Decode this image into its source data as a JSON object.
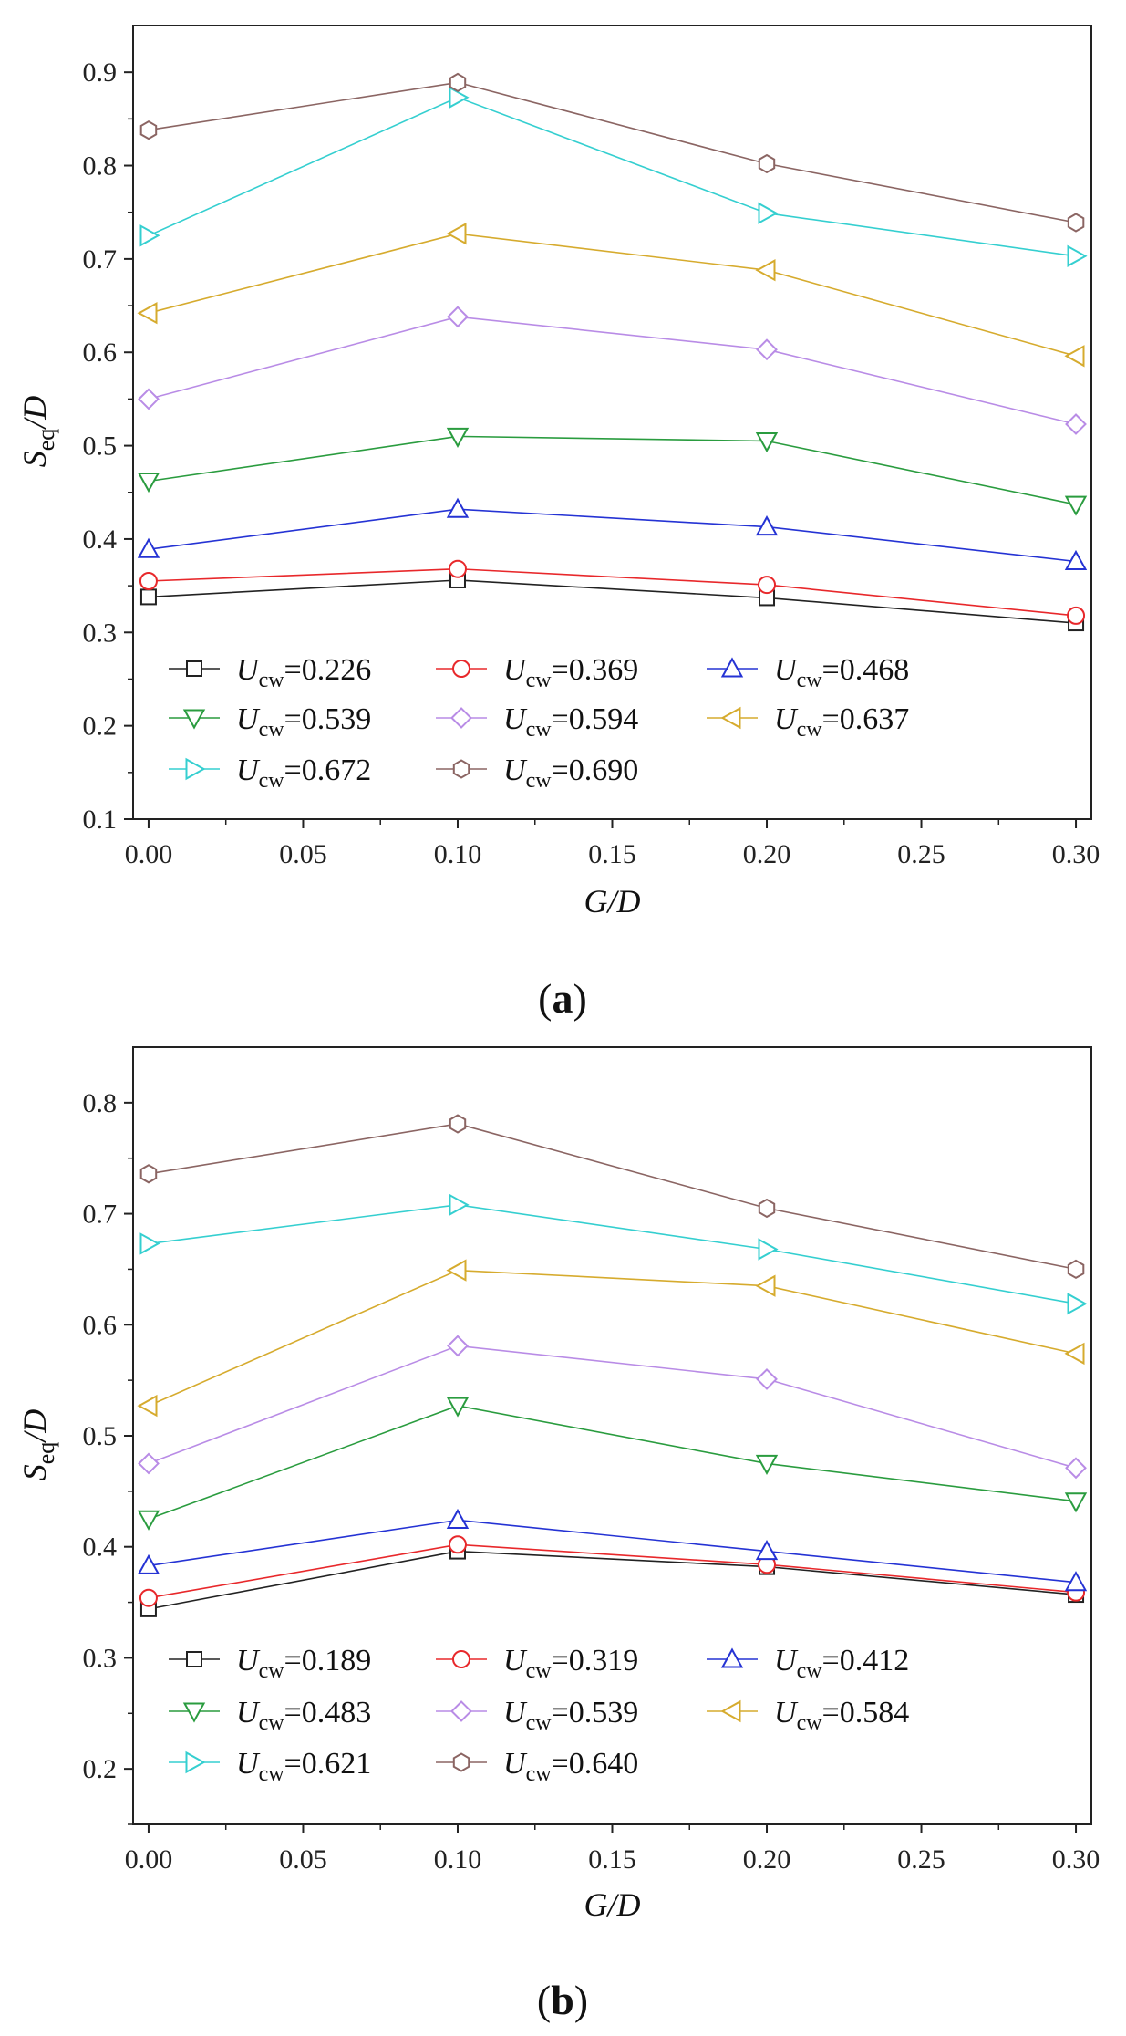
{
  "chart_data": [
    {
      "type": "line",
      "panel": "a",
      "panel_label": "a",
      "xlabel": "G/D",
      "ylabel": "Seq/D",
      "xlim": [
        -0.005,
        0.305
      ],
      "ylim": [
        0.1,
        0.95
      ],
      "x_ticks": [
        0.0,
        0.05,
        0.1,
        0.15,
        0.2,
        0.25,
        0.3
      ],
      "x_tick_labels": [
        "0.00",
        "0.05",
        "0.10",
        "0.15",
        "0.20",
        "0.25",
        "0.30"
      ],
      "y_ticks": [
        0.1,
        0.2,
        0.3,
        0.4,
        0.5,
        0.6,
        0.7,
        0.8,
        0.9
      ],
      "y_tick_labels": [
        "0.1",
        "0.2",
        "0.3",
        "0.4",
        "0.5",
        "0.6",
        "0.7",
        "0.8",
        "0.9"
      ],
      "legend_position": "bottom-left",
      "x": [
        0.0,
        0.1,
        0.2,
        0.3
      ],
      "series": [
        {
          "name": "Ucw=0.226",
          "label_value": "=0.226",
          "marker": "square",
          "color": "#222222",
          "values": [
            0.338,
            0.356,
            0.337,
            0.31
          ]
        },
        {
          "name": "Ucw=0.369",
          "label_value": "=0.369",
          "marker": "circle",
          "color": "#e8282b",
          "values": [
            0.355,
            0.368,
            0.351,
            0.318
          ]
        },
        {
          "name": "Ucw=0.468",
          "label_value": "=0.468",
          "marker": "triangle-up",
          "color": "#2533d4",
          "values": [
            0.389,
            0.432,
            0.413,
            0.376
          ]
        },
        {
          "name": "Ucw=0.539",
          "label_value": "=0.539",
          "marker": "triangle-down",
          "color": "#2a9c3f",
          "values": [
            0.462,
            0.51,
            0.505,
            0.437
          ]
        },
        {
          "name": "Ucw=0.594",
          "label_value": "=0.594",
          "marker": "diamond",
          "color": "#b98ce6",
          "values": [
            0.55,
            0.638,
            0.603,
            0.523
          ]
        },
        {
          "name": "Ucw=0.637",
          "label_value": "=0.637",
          "marker": "triangle-left",
          "color": "#d6ab2e",
          "values": [
            0.642,
            0.727,
            0.688,
            0.596
          ]
        },
        {
          "name": "Ucw=0.672",
          "label_value": "=0.672",
          "marker": "triangle-right",
          "color": "#35cfd0",
          "values": [
            0.725,
            0.873,
            0.749,
            0.703
          ]
        },
        {
          "name": "Ucw=0.690",
          "label_value": "=0.690",
          "marker": "hexagon",
          "color": "#8b6563",
          "values": [
            0.838,
            0.889,
            0.802,
            0.739
          ]
        }
      ]
    },
    {
      "type": "line",
      "panel": "b",
      "panel_label": "b",
      "xlabel": "G/D",
      "ylabel": "Seq/D",
      "xlim": [
        -0.005,
        0.305
      ],
      "ylim": [
        0.15,
        0.85
      ],
      "x_ticks": [
        0.0,
        0.05,
        0.1,
        0.15,
        0.2,
        0.25,
        0.3
      ],
      "x_tick_labels": [
        "0.00",
        "0.05",
        "0.10",
        "0.15",
        "0.20",
        "0.25",
        "0.30"
      ],
      "y_ticks": [
        0.2,
        0.3,
        0.4,
        0.5,
        0.6,
        0.7,
        0.8
      ],
      "y_tick_labels": [
        "0.2",
        "0.3",
        "0.4",
        "0.5",
        "0.6",
        "0.7",
        "0.8"
      ],
      "legend_position": "bottom-left",
      "x": [
        0.0,
        0.1,
        0.2,
        0.3
      ],
      "series": [
        {
          "name": "Ucw=0.189",
          "label_value": "=0.189",
          "marker": "square",
          "color": "#222222",
          "values": [
            0.344,
            0.396,
            0.382,
            0.357
          ]
        },
        {
          "name": "Ucw=0.319",
          "label_value": "=0.319",
          "marker": "circle",
          "color": "#e8282b",
          "values": [
            0.354,
            0.402,
            0.384,
            0.359
          ]
        },
        {
          "name": "Ucw=0.412",
          "label_value": "=0.412",
          "marker": "triangle-up",
          "color": "#2533d4",
          "values": [
            0.383,
            0.424,
            0.396,
            0.368
          ]
        },
        {
          "name": "Ucw=0.483",
          "label_value": "=0.483",
          "marker": "triangle-down",
          "color": "#2a9c3f",
          "values": [
            0.425,
            0.527,
            0.475,
            0.441
          ]
        },
        {
          "name": "Ucw=0.539",
          "label_value": "=0.539",
          "marker": "diamond",
          "color": "#b98ce6",
          "values": [
            0.475,
            0.581,
            0.551,
            0.471
          ]
        },
        {
          "name": "Ucw=0.584",
          "label_value": "=0.584",
          "marker": "triangle-left",
          "color": "#d6ab2e",
          "values": [
            0.527,
            0.649,
            0.635,
            0.574
          ]
        },
        {
          "name": "Ucw=0.621",
          "label_value": "=0.621",
          "marker": "triangle-right",
          "color": "#35cfd0",
          "values": [
            0.673,
            0.708,
            0.668,
            0.619
          ]
        },
        {
          "name": "Ucw=0.640",
          "label_value": "=0.640",
          "marker": "hexagon",
          "color": "#8b6563",
          "values": [
            0.736,
            0.781,
            0.705,
            0.65
          ]
        }
      ]
    }
  ],
  "symbols": {
    "legend_var": "U",
    "legend_sub": "cw",
    "xlabel_main": "G/D",
    "ylabel_main": "S",
    "ylabel_sub": "eq",
    "ylabel_tail": "/D"
  }
}
